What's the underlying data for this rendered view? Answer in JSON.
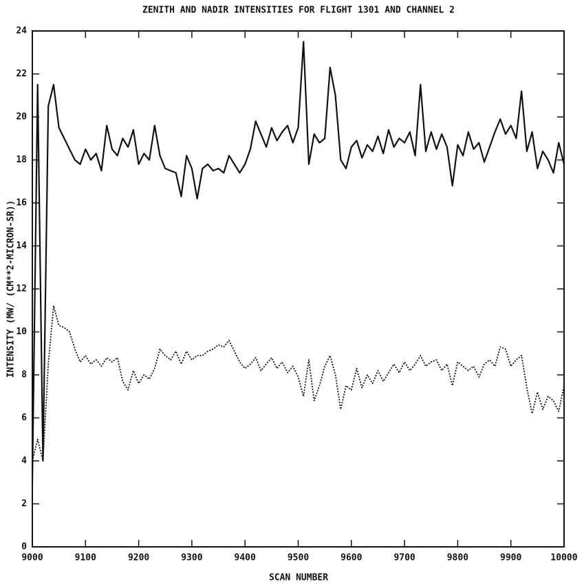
{
  "chart_data": {
    "type": "line",
    "title": "ZENITH AND NADIR INTENSITIES FOR FLIGHT 1301 AND CHANNEL   2",
    "xlabel": "SCAN NUMBER",
    "ylabel": "INTENSITY  (MW/ (CM**2-MICRON-SR))",
    "x": [
      9000,
      9010,
      9020,
      9030,
      9040,
      9050,
      9060,
      9070,
      9080,
      9090,
      9100,
      9110,
      9120,
      9130,
      9140,
      9150,
      9160,
      9170,
      9180,
      9190,
      9200,
      9210,
      9220,
      9230,
      9240,
      9250,
      9260,
      9270,
      9280,
      9290,
      9300,
      9310,
      9320,
      9330,
      9340,
      9350,
      9360,
      9370,
      9380,
      9390,
      9400,
      9410,
      9420,
      9430,
      9440,
      9450,
      9460,
      9470,
      9480,
      9490,
      9500,
      9510,
      9520,
      9530,
      9540,
      9550,
      9560,
      9570,
      9580,
      9590,
      9600,
      9610,
      9620,
      9630,
      9640,
      9650,
      9660,
      9670,
      9680,
      9690,
      9700,
      9710,
      9720,
      9730,
      9740,
      9750,
      9760,
      9770,
      9780,
      9790,
      9800,
      9810,
      9820,
      9830,
      9840,
      9850,
      9860,
      9870,
      9880,
      9890,
      9900,
      9910,
      9920,
      9930,
      9940,
      9950,
      9960,
      9970,
      9980,
      9990,
      10000
    ],
    "series": [
      {
        "color": "#111111",
        "dash": "solid",
        "values": [
          3,
          21.5,
          4,
          20.5,
          21.5,
          19.5,
          19,
          18.5,
          18,
          17.8,
          18.5,
          18,
          18.3,
          17.5,
          19.6,
          18.5,
          18.2,
          19,
          18.6,
          19.4,
          17.8,
          18.3,
          18,
          19.6,
          18.2,
          17.6,
          17.5,
          17.4,
          16.3,
          18.2,
          17.6,
          16.2,
          17.6,
          17.8,
          17.5,
          17.6,
          17.4,
          18.2,
          17.8,
          17.4,
          17.8,
          18.5,
          19.8,
          19.2,
          18.6,
          19.5,
          18.9,
          19.3,
          19.6,
          18.8,
          19.5,
          23.5,
          17.8,
          19.2,
          18.8,
          19,
          22.3,
          21,
          18,
          17.6,
          18.6,
          18.9,
          18.1,
          18.7,
          18.4,
          19.1,
          18.3,
          19.4,
          18.6,
          19,
          18.8,
          19.3,
          18.2,
          21.5,
          18.4,
          19.3,
          18.5,
          19.2,
          18.6,
          16.8,
          18.7,
          18.2,
          19.3,
          18.5,
          18.8,
          17.9,
          18.6,
          19.3,
          19.9,
          19.2,
          19.6,
          19,
          21.2,
          18.4,
          19.3,
          17.6,
          18.4,
          18,
          17.4,
          18.8,
          17.8
        ]
      },
      {
        "color": "#111111",
        "dash": "dotted",
        "values": [
          4,
          5,
          4,
          8.5,
          11.2,
          10.3,
          10.2,
          10,
          9.2,
          8.6,
          8.9,
          8.5,
          8.7,
          8.4,
          8.8,
          8.6,
          8.8,
          7.7,
          7.3,
          8.2,
          7.6,
          8,
          7.8,
          8.3,
          9.2,
          8.9,
          8.7,
          9.1,
          8.5,
          9.1,
          8.7,
          8.9,
          8.9,
          9.1,
          9.2,
          9.4,
          9.3,
          9.6,
          9.1,
          8.6,
          8.3,
          8.5,
          8.8,
          8.2,
          8.5,
          8.8,
          8.3,
          8.6,
          8.1,
          8.4,
          7.9,
          7,
          8.7,
          6.8,
          7.5,
          8.4,
          8.9,
          8,
          6.4,
          7.5,
          7.3,
          8.3,
          7.4,
          8,
          7.6,
          8.2,
          7.7,
          8.1,
          8.5,
          8.1,
          8.6,
          8.2,
          8.5,
          8.9,
          8.4,
          8.6,
          8.7,
          8.2,
          8.5,
          7.5,
          8.6,
          8.4,
          8.2,
          8.4,
          7.9,
          8.5,
          8.7,
          8.4,
          9.3,
          9.2,
          8.4,
          8.7,
          8.9,
          7.4,
          6.2,
          7.2,
          6.4,
          7,
          6.8,
          6.3,
          7.5
        ]
      }
    ],
    "xlim": [
      9000,
      10000
    ],
    "xticks": [
      9000,
      9100,
      9200,
      9300,
      9400,
      9500,
      9600,
      9700,
      9800,
      9900,
      10000
    ],
    "ylim": [
      0,
      24
    ],
    "yticks": [
      0,
      2,
      4,
      6,
      8,
      10,
      12,
      14,
      16,
      18,
      20,
      22,
      24
    ],
    "grid": false
  }
}
